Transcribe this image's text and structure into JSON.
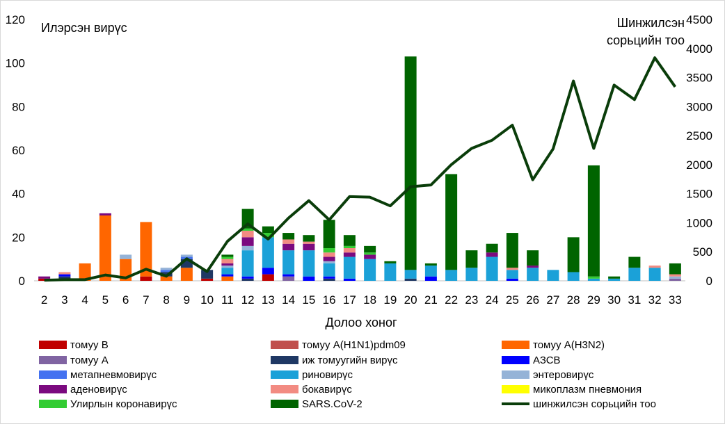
{
  "chart_data": {
    "type": "bar",
    "stacked": true,
    "xlabel": "Долоо хоног",
    "ylabel_left": "Илэрсэн вирүс",
    "ylabel_right_line1": "Шинжилсэн",
    "ylabel_right_line2": "сорьцийн тоо",
    "categories": [
      "2",
      "3",
      "4",
      "5",
      "6",
      "7",
      "8",
      "9",
      "10",
      "11",
      "12",
      "13",
      "14",
      "15",
      "16",
      "17",
      "18",
      "19",
      "20",
      "21",
      "22",
      "23",
      "24",
      "25",
      "26",
      "27",
      "28",
      "29",
      "30",
      "31",
      "32",
      "33"
    ],
    "ylim_left": [
      0,
      120
    ],
    "ylim_right": [
      0,
      4500
    ],
    "yticks_left": [
      "0",
      "20",
      "40",
      "60",
      "80",
      "100",
      "120"
    ],
    "yticks_right": [
      "0",
      "500",
      "1000",
      "1500",
      "2000",
      "2500",
      "3000",
      "3500",
      "4000",
      "4500"
    ],
    "grid": false,
    "legend_position": "bottom",
    "series": [
      {
        "name": "томуу В",
        "color": "#c00000",
        "values": [
          1,
          0,
          0,
          0,
          0,
          2,
          0,
          0,
          1,
          0,
          0,
          3,
          0,
          0,
          0,
          0,
          0,
          0,
          0,
          0,
          0,
          0,
          0,
          0,
          0,
          0,
          0,
          0,
          0,
          0,
          0,
          0
        ]
      },
      {
        "name": "томуу А(Н1N1)pdm09",
        "color": "#c0504d",
        "values": [
          0,
          0,
          0,
          0,
          0,
          0,
          0,
          0,
          0,
          0,
          0,
          0,
          0,
          0,
          0,
          0,
          0,
          0,
          0,
          0,
          0,
          0,
          0,
          0,
          0,
          0,
          0,
          0,
          0,
          0,
          0,
          0
        ]
      },
      {
        "name": "томуу А(Н3N2)",
        "color": "#ff6600",
        "values": [
          0,
          1,
          8,
          30,
          10,
          25,
          2,
          6,
          0,
          2,
          0,
          0,
          0,
          0,
          0,
          0,
          0,
          0,
          0,
          0,
          0,
          0,
          0,
          0,
          0,
          0,
          0,
          0,
          0,
          0,
          0,
          0
        ]
      },
      {
        "name": "томуу А",
        "color": "#8064a2",
        "values": [
          0,
          0,
          0,
          0,
          0,
          0,
          0,
          0,
          0,
          0,
          0,
          0,
          2,
          0,
          0,
          0,
          0,
          0,
          0,
          0,
          0,
          0,
          0,
          0,
          0,
          0,
          0,
          0,
          0,
          0,
          0,
          1
        ]
      },
      {
        "name": "иж томуугийн вирүс",
        "color": "#1f3864",
        "values": [
          0,
          1,
          0,
          0,
          0,
          0,
          2,
          4,
          4,
          0,
          1,
          0,
          0,
          0,
          1,
          0,
          0,
          0,
          1,
          0,
          0,
          0,
          0,
          0,
          0,
          0,
          0,
          0,
          0,
          0,
          0,
          0
        ]
      },
      {
        "name": "АЗСВ",
        "color": "#0000ff",
        "values": [
          0,
          1,
          0,
          0,
          0,
          0,
          0,
          0,
          0,
          1,
          1,
          3,
          1,
          2,
          1,
          1,
          0,
          0,
          0,
          2,
          0,
          0,
          0,
          1,
          0,
          0,
          0,
          0,
          0,
          0,
          0,
          0
        ]
      },
      {
        "name": "метапневмовирүс",
        "color": "#4472f0",
        "values": [
          0,
          0,
          0,
          0,
          0,
          0,
          1,
          1,
          0,
          0,
          0,
          0,
          0,
          0,
          0,
          0,
          0,
          0,
          0,
          0,
          0,
          0,
          0,
          0,
          0,
          0,
          0,
          0,
          0,
          0,
          0,
          0
        ]
      },
      {
        "name": "риновирүс",
        "color": "#1ba1d8",
        "values": [
          0,
          0,
          0,
          0,
          0,
          0,
          0,
          0,
          0,
          3,
          12,
          14,
          11,
          12,
          6,
          10,
          10,
          8,
          4,
          5,
          5,
          6,
          11,
          4,
          6,
          5,
          4,
          1,
          1,
          6,
          6,
          0
        ]
      },
      {
        "name": "энтеровирүс",
        "color": "#95b3d7",
        "values": [
          0,
          0,
          0,
          0,
          2,
          0,
          1,
          1,
          0,
          1,
          2,
          0,
          0,
          0,
          1,
          0,
          0,
          0,
          0,
          0,
          0,
          0,
          0,
          0,
          0,
          0,
          0,
          0,
          0,
          0,
          0,
          1
        ]
      },
      {
        "name": "аденовирүс",
        "color": "#7b0a7f",
        "values": [
          1,
          0,
          0,
          1,
          0,
          0,
          0,
          0,
          0,
          1,
          4,
          0,
          3,
          3,
          2,
          2,
          2,
          0,
          0,
          0,
          0,
          0,
          2,
          0,
          1,
          0,
          0,
          0,
          0,
          0,
          0,
          0
        ]
      },
      {
        "name": "бокавирүс",
        "color": "#f28b82",
        "values": [
          0,
          1,
          0,
          0,
          0,
          0,
          0,
          0,
          0,
          2,
          3,
          0,
          2,
          1,
          2,
          2,
          0,
          0,
          0,
          0,
          0,
          0,
          0,
          1,
          0,
          0,
          0,
          0,
          0,
          0,
          1,
          1
        ]
      },
      {
        "name": "микоплазм пневмония",
        "color": "#ffff00",
        "values": [
          0,
          0,
          0,
          0,
          0,
          0,
          0,
          0,
          0,
          0,
          0,
          0,
          0,
          0,
          0,
          0,
          0,
          0,
          0,
          0,
          0,
          0,
          0,
          0,
          0,
          0,
          0,
          0,
          0,
          0,
          0,
          0
        ]
      },
      {
        "name": "Улирлын коронавирүс",
        "color": "#33cc33",
        "values": [
          0,
          0,
          0,
          0,
          0,
          0,
          0,
          0,
          0,
          1,
          1,
          2,
          0,
          0,
          2,
          1,
          1,
          0,
          0,
          0,
          0,
          0,
          0,
          0,
          0,
          0,
          0,
          1,
          0,
          0,
          0,
          0
        ]
      },
      {
        "name": "SARS.CoV-2",
        "color": "#006400",
        "values": [
          0,
          0,
          0,
          0,
          0,
          0,
          0,
          0,
          0,
          1,
          9,
          3,
          3,
          3,
          13,
          5,
          3,
          1,
          98,
          1,
          44,
          8,
          4,
          16,
          7,
          0,
          16,
          51,
          1,
          5,
          0,
          5
        ]
      }
    ],
    "line": {
      "name": "шинжилсэн сорьцийн тоо",
      "color": "#0a3d0a",
      "axis": "right",
      "values": [
        10,
        20,
        20,
        100,
        50,
        200,
        80,
        380,
        160,
        680,
        980,
        720,
        1080,
        1380,
        1050,
        1450,
        1440,
        1290,
        1620,
        1650,
        2000,
        2280,
        2420,
        2680,
        1740,
        2270,
        3440,
        2280,
        3370,
        3120,
        3840,
        3340
      ]
    }
  }
}
